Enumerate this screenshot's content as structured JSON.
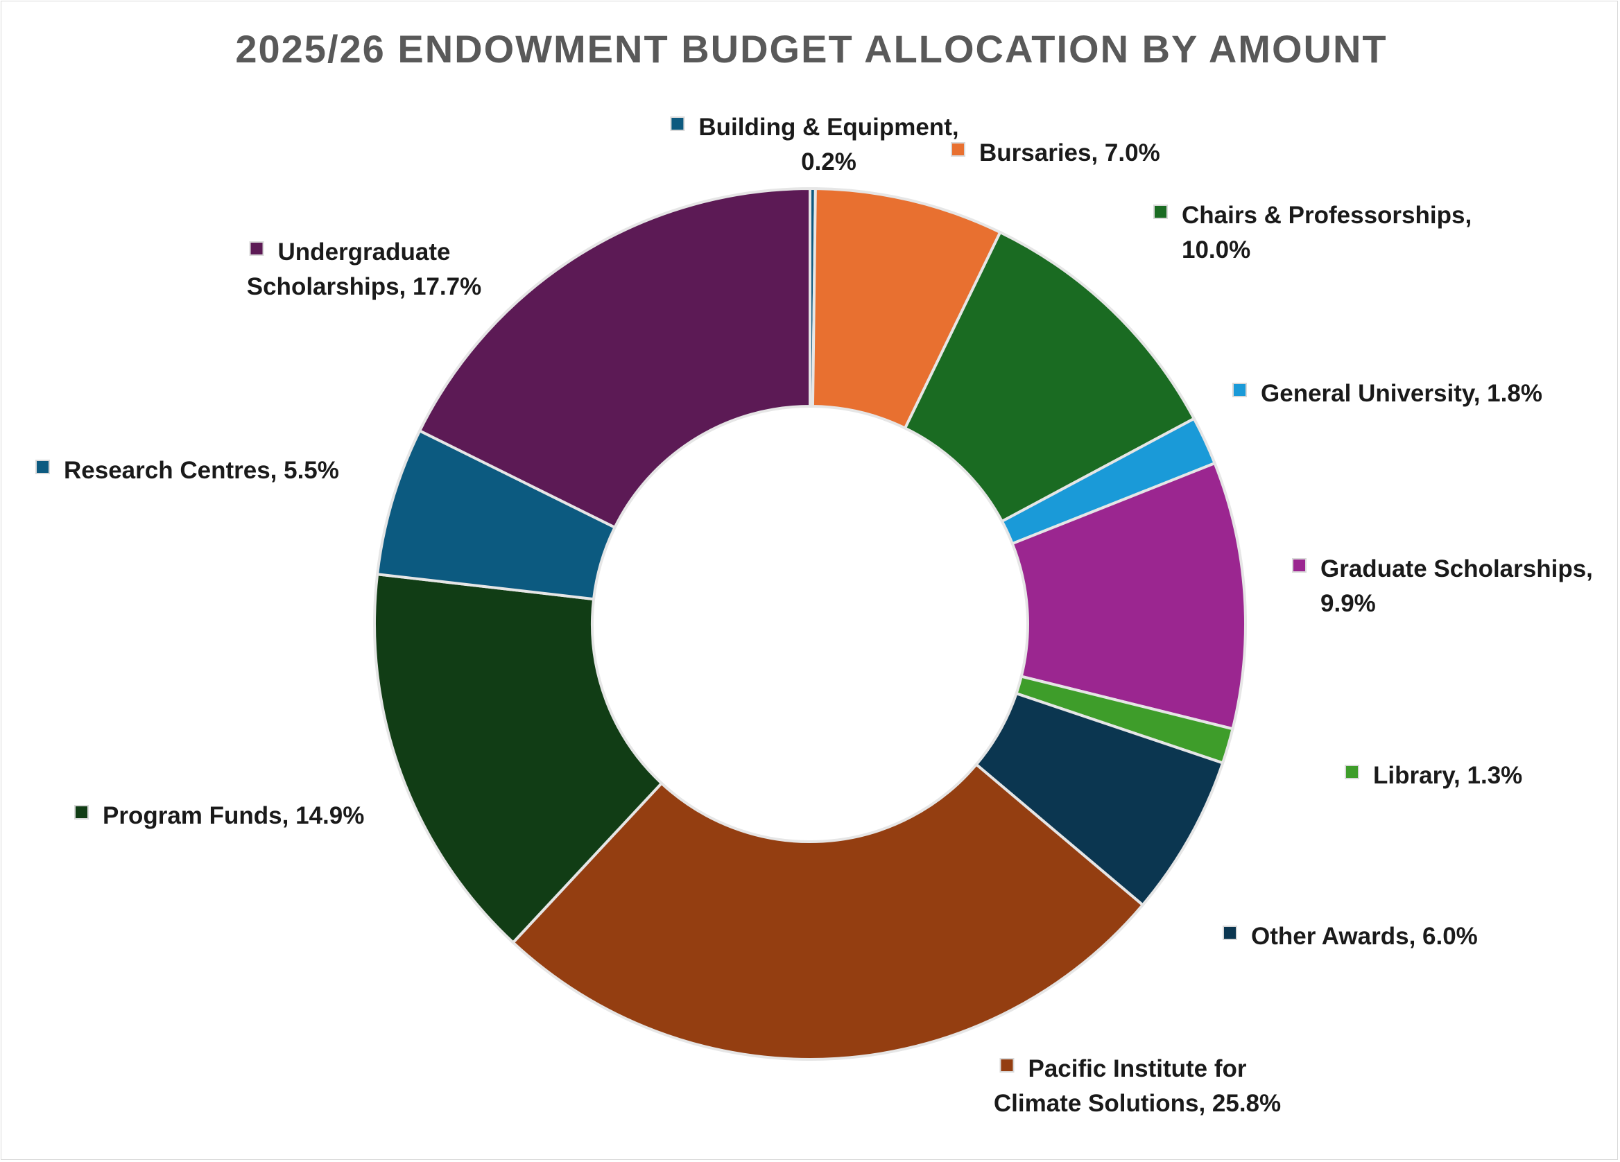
{
  "chart_data": {
    "type": "pie",
    "title": "2025/26 ENDOWMENT BUDGET ALLOCATION BY AMOUNT",
    "slices": [
      {
        "name": "Building & Equipment",
        "value": 0.2,
        "label_lines": [
          "Building & Equipment,",
          "0.2%"
        ],
        "color": "#0d5a7f"
      },
      {
        "name": "Bursaries",
        "value": 7.0,
        "label_lines": [
          "Bursaries, 7.0%"
        ],
        "color": "#e87030"
      },
      {
        "name": "Chairs & Professorships",
        "value": 10.0,
        "label_lines": [
          "Chairs & Professorships,",
          "10.0%"
        ],
        "color": "#1a6b22"
      },
      {
        "name": "General University",
        "value": 1.8,
        "label_lines": [
          "General University, 1.8%"
        ],
        "color": "#1a9ad8"
      },
      {
        "name": "Graduate Scholarships",
        "value": 9.9,
        "label_lines": [
          "Graduate Scholarships,",
          "9.9%"
        ],
        "color": "#9b2690"
      },
      {
        "name": "Library",
        "value": 1.3,
        "label_lines": [
          "Library, 1.3%"
        ],
        "color": "#3e9d2a"
      },
      {
        "name": "Other Awards",
        "value": 6.0,
        "label_lines": [
          "Other Awards, 6.0%"
        ],
        "color": "#0b3650"
      },
      {
        "name": "Pacific Institute for Climate Solutions",
        "value": 25.8,
        "label_lines": [
          "Pacific Institute for",
          "Climate Solutions, 25.8%"
        ],
        "color": "#943e11"
      },
      {
        "name": "Program Funds",
        "value": 14.9,
        "label_lines": [
          "Program Funds, 14.9%"
        ],
        "color": "#113d15"
      },
      {
        "name": "Research Centres",
        "value": 5.5,
        "label_lines": [
          "Research Centres, 5.5%"
        ],
        "color": "#0c5a80"
      },
      {
        "name": "Undergraduate Scholarships",
        "value": 17.7,
        "label_lines": [
          "Undergraduate",
          "Scholarships, 17.7%"
        ],
        "color": "#5c1a55"
      }
    ]
  }
}
